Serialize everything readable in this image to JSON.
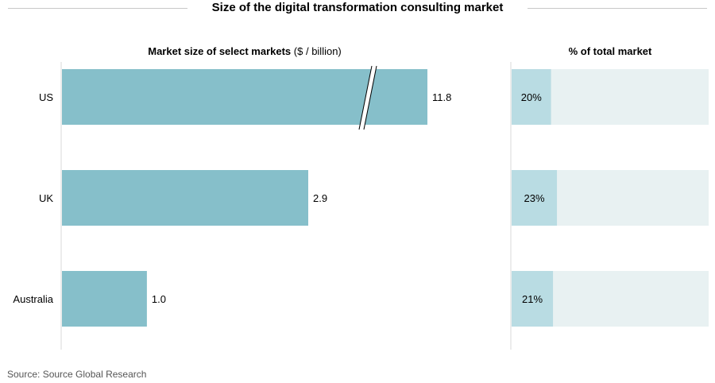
{
  "title": "Size of the digital transformation consulting market",
  "source": "Source: Source Global Research",
  "colors": {
    "bar": "#86bfca",
    "share_fill": "#b9dce3",
    "share_track": "#e8f1f2",
    "axis": "#d8d8d8",
    "title_rule": "#c8c8c8"
  },
  "chart_data": [
    {
      "type": "bar",
      "orientation": "horizontal",
      "title": "Market size of select markets",
      "title_unit": "($ / billion)",
      "categories": [
        "US",
        "UK",
        "Australia"
      ],
      "values": [
        11.8,
        2.9,
        1.0
      ],
      "value_labels": [
        "11.8",
        "2.9",
        "1.0"
      ],
      "axis_break": {
        "category": "US"
      }
    },
    {
      "type": "bar",
      "orientation": "horizontal",
      "title": "% of total market",
      "categories": [
        "US",
        "UK",
        "Australia"
      ],
      "values": [
        20,
        23,
        21
      ],
      "value_labels": [
        "20%",
        "23%",
        "21%"
      ],
      "xlim": [
        0,
        100
      ]
    }
  ]
}
